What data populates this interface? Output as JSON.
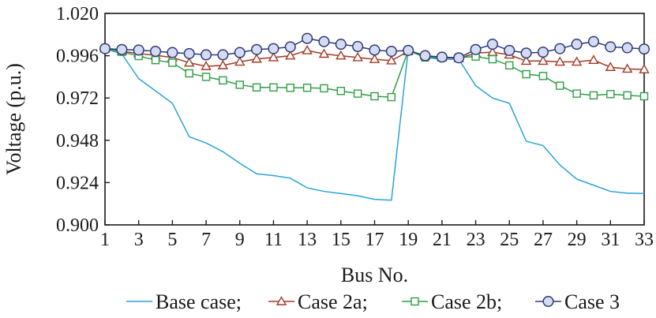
{
  "chart_data": {
    "type": "line",
    "xlabel": "Bus No.",
    "ylabel": "Voltage (p.u.)",
    "xlim": [
      1,
      33
    ],
    "ylim": [
      0.9,
      1.02
    ],
    "x_ticks": [
      "1",
      "3",
      "5",
      "7",
      "9",
      "11",
      "13",
      "15",
      "17",
      "19",
      "21",
      "23",
      "25",
      "27",
      "29",
      "31",
      "33"
    ],
    "y_ticks": [
      "0.900",
      "0.924",
      "0.948",
      "0.972",
      "0.996",
      "1.020"
    ],
    "grid": false,
    "legend_position": "bottom",
    "x": [
      1,
      2,
      3,
      4,
      5,
      6,
      7,
      8,
      9,
      10,
      11,
      12,
      13,
      14,
      15,
      16,
      17,
      18,
      19,
      20,
      21,
      22,
      23,
      24,
      25,
      26,
      27,
      28,
      29,
      30,
      31,
      32,
      33
    ],
    "series": [
      {
        "name": "Base case;",
        "color": "#29a3d6",
        "marker": "none",
        "values": [
          1.0,
          0.997,
          0.983,
          0.976,
          0.969,
          0.95,
          0.9465,
          0.9415,
          0.935,
          0.929,
          0.928,
          0.9265,
          0.921,
          0.919,
          0.9178,
          0.9165,
          0.9145,
          0.914,
          0.9995,
          0.995,
          0.994,
          0.994,
          0.979,
          0.972,
          0.969,
          0.9475,
          0.945,
          0.934,
          0.926,
          0.9225,
          0.919,
          0.918,
          0.9178
        ]
      },
      {
        "name": "Case 2a;",
        "color": "#a33a26",
        "marker": "triangle",
        "values": [
          1.0,
          0.9985,
          0.9972,
          0.9962,
          0.995,
          0.992,
          0.99,
          0.9905,
          0.9925,
          0.9942,
          0.995,
          0.996,
          0.999,
          0.997,
          0.996,
          0.995,
          0.994,
          0.9932,
          0.9985,
          0.996,
          0.995,
          0.9945,
          0.9975,
          0.998,
          0.9965,
          0.993,
          0.993,
          0.9925,
          0.9925,
          0.9935,
          0.9895,
          0.9885,
          0.9882
        ]
      },
      {
        "name": "Case 2b;",
        "color": "#2f9e46",
        "marker": "square",
        "values": [
          1.0,
          0.9982,
          0.9958,
          0.9935,
          0.992,
          0.986,
          0.984,
          0.982,
          0.9795,
          0.978,
          0.978,
          0.9778,
          0.9778,
          0.9775,
          0.976,
          0.9745,
          0.973,
          0.9725,
          0.999,
          0.995,
          0.995,
          0.995,
          0.9955,
          0.994,
          0.9905,
          0.9855,
          0.9845,
          0.979,
          0.9745,
          0.9735,
          0.9742,
          0.9735,
          0.973
        ]
      },
      {
        "name": "Case 3",
        "color": "#2e3a7a",
        "marker": "circle",
        "values": [
          1.0,
          0.9995,
          0.9992,
          0.9985,
          0.9978,
          0.9972,
          0.9965,
          0.9965,
          0.9978,
          0.9995,
          1.0,
          1.001,
          1.0058,
          1.004,
          1.0025,
          1.0012,
          0.9992,
          0.9985,
          0.999,
          0.996,
          0.9952,
          0.9948,
          0.9995,
          1.0025,
          0.999,
          0.9975,
          0.998,
          1.0,
          1.0025,
          1.004,
          1.001,
          1.0005,
          0.9998
        ]
      }
    ]
  }
}
